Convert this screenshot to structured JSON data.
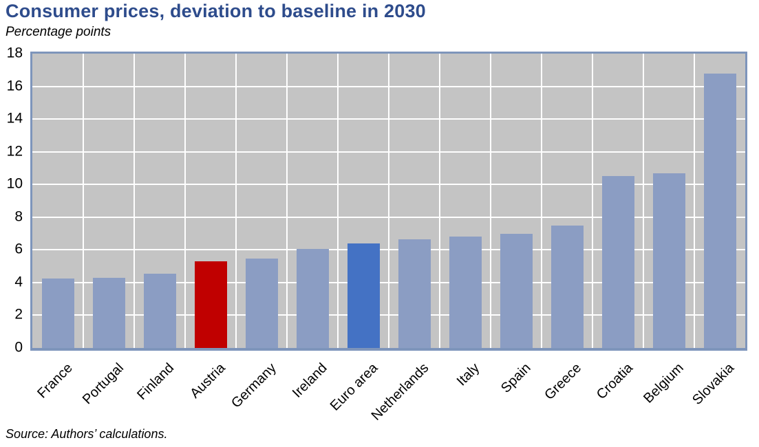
{
  "chart_data": {
    "type": "bar",
    "title": "Consumer prices, deviation to baseline in 2030",
    "subtitle": "Percentage points",
    "source": "Source: Authors’ calculations.",
    "categories": [
      "France",
      "Portugal",
      "Finland",
      "Austria",
      "Germany",
      "Ireland",
      "Euro area",
      "Netherlands",
      "Italy",
      "Spain",
      "Greece",
      "Croatia",
      "Belgium",
      "Slovakia"
    ],
    "values": [
      4.25,
      4.3,
      4.55,
      5.3,
      5.45,
      6.05,
      6.4,
      6.65,
      6.8,
      7.0,
      7.5,
      10.5,
      10.7,
      16.8
    ],
    "xlabel": "",
    "ylabel": "Percentage points",
    "ylim": [
      0,
      18
    ],
    "ytick_step": 2,
    "yticks": [
      0,
      2,
      4,
      6,
      8,
      10,
      12,
      14,
      16,
      18
    ],
    "grid": true,
    "legend_position": "none",
    "colors": {
      "bar_default": "#8B9DC3",
      "bar_highlights": {
        "Austria": "#C00000",
        "Euro area": "#4472C4"
      },
      "plot_background": "#C4C4C4",
      "gridline": "#FFFFFF",
      "plot_border": "#7E95BB",
      "title_text": "#2E4C8C",
      "body_text": "#000000"
    }
  }
}
